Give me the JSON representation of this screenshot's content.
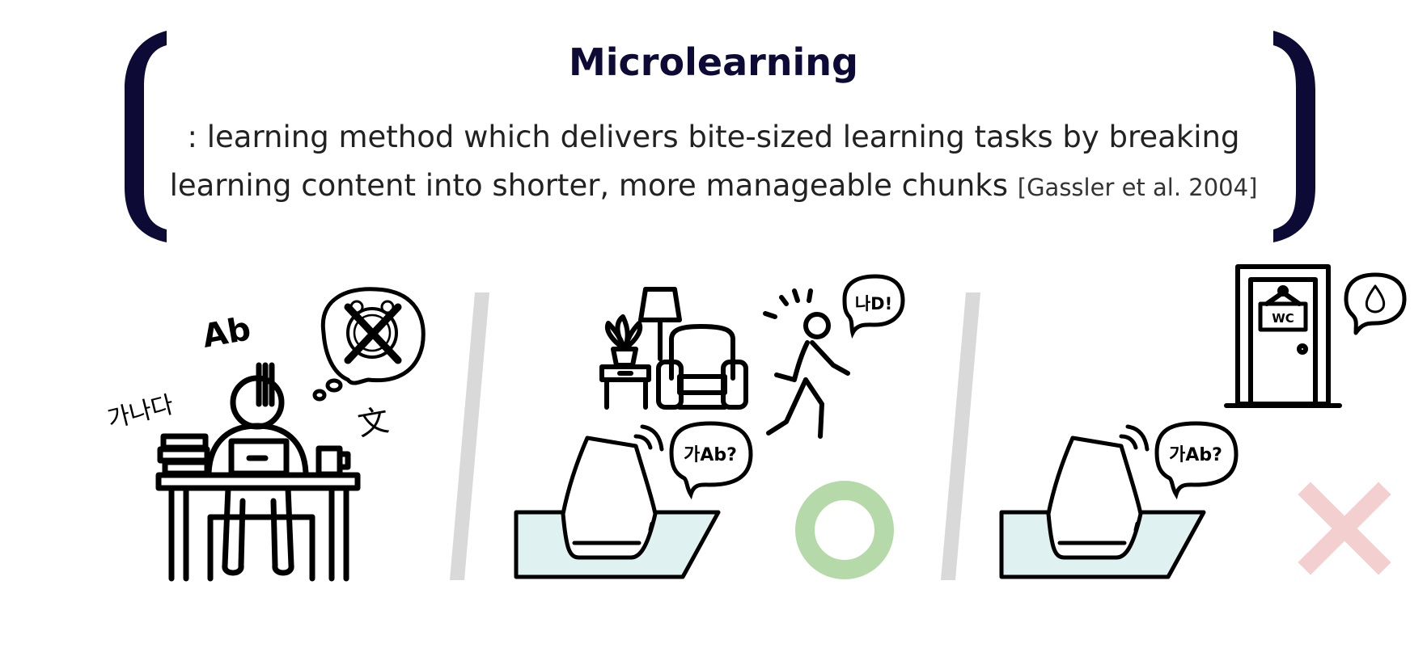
{
  "header": {
    "title": "Microlearning",
    "definition_line1": ": learning method which delivers bite-sized learning tasks by breaking",
    "definition_line2": "learning content into shorter, more manageable chunks",
    "citation": "[Gassler et al. 2004]"
  },
  "panel1": {
    "label_ab": "Ab",
    "label_korean": "가나다",
    "label_hanja": "文"
  },
  "panel2": {
    "speaker_bubble": "가Ab?",
    "person_bubble": "나D!",
    "result_symbol": "circle"
  },
  "panel3": {
    "speaker_bubble": "가Ab?",
    "door_sign": "WC",
    "result_symbol": "cross"
  },
  "colors": {
    "navy": "#0d0a35",
    "divider": "#d9d9d9",
    "mat": "#e0f1f1",
    "ok_green": "#b5d9a8",
    "no_red": "#f3cfd0"
  }
}
